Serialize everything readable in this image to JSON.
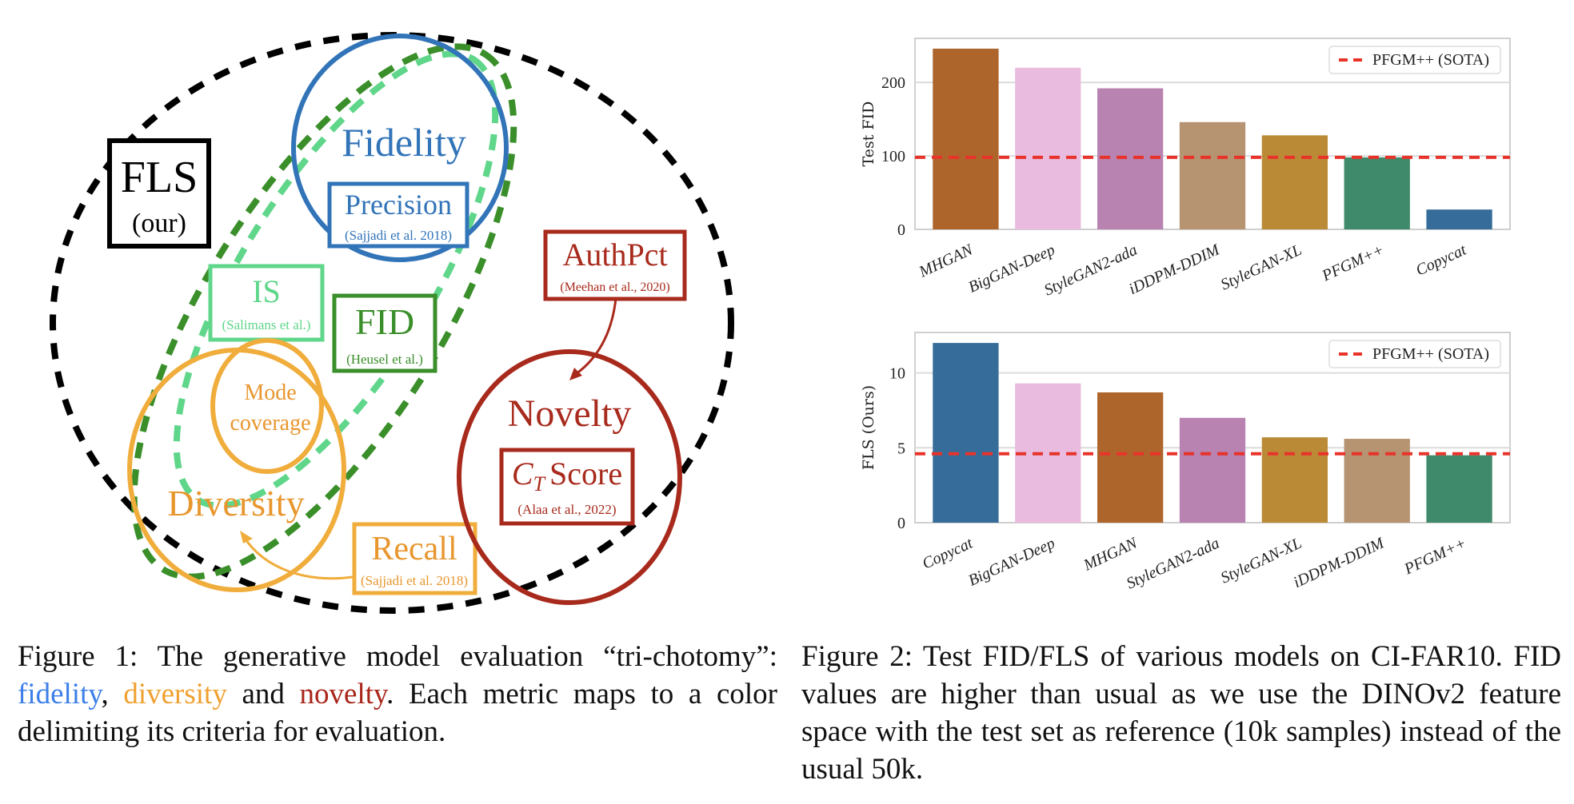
{
  "figure1": {
    "fls": {
      "title": "FLS",
      "sub": "(our)"
    },
    "fidelity": {
      "label": "Fidelity",
      "metric": "Precision",
      "cite": "(Sajjadi et al. 2018)"
    },
    "is": {
      "label": "IS",
      "cite": "(Salimans et al.)"
    },
    "fid": {
      "label": "FID",
      "cite": "(Heusel et al.)"
    },
    "authpct": {
      "label": "AuthPct",
      "cite": "(Meehan et al., 2020)"
    },
    "novelty": {
      "label": "Novelty",
      "metric_c": "C",
      "metric_sub": "T",
      "metric_rest": "Score",
      "cite": "(Alaa et al., 2022)"
    },
    "mode": {
      "line1": "Mode",
      "line2": "coverage"
    },
    "diversity": {
      "label": "Diversity"
    },
    "recall": {
      "label": "Recall",
      "cite": "(Sajjadi et al. 2018)"
    },
    "colors": {
      "fidelity": "#3274b8",
      "fid": "#3a8f2a",
      "is": "#5fd68a",
      "diversity": "#f0ad3c",
      "novelty": "#a82a1c",
      "fls": "#000000"
    }
  },
  "caption1": {
    "prefix": "Figure 1:  The generative model evaluation “tri-chotomy”: ",
    "w1": "fidelity",
    "sep1": ", ",
    "w2": "diversity",
    "sep2": " and ",
    "w3": "novelty",
    "suffix": ". Each metric maps to a color delimiting its criteria for evaluation."
  },
  "caption2": {
    "text": "Figure 2:  Test FID/FLS of various models on CI-FAR10. FID values are higher than usual as we use the DINOv2 feature space with the test set as reference (10k samples) instead of the usual 50k."
  },
  "chart_data": [
    {
      "type": "bar",
      "ylabel": "Test FID",
      "xlabel": "",
      "categories": [
        "MHGAN",
        "BigGAN-Deep",
        "StyleGAN2-ada",
        "iDDPM-DDIM",
        "StyleGAN-XL",
        "PFGM++",
        "Copycat"
      ],
      "values": [
        246,
        220,
        192,
        146,
        128,
        98,
        27
      ],
      "colors": [
        "#ad652c",
        "#e9bbdf",
        "#b883b0",
        "#b69371",
        "#bb8a37",
        "#3f8a6a",
        "#356c99"
      ],
      "yticks": [
        0,
        100,
        200
      ],
      "ylim": [
        0,
        260
      ],
      "grid": true,
      "reference_line": {
        "label": "PFGM++ (SOTA)",
        "value": 98,
        "color": "#e8332a",
        "style": "dashed"
      },
      "legend": "top-right"
    },
    {
      "type": "bar",
      "ylabel": "FLS (Ours)",
      "xlabel": "",
      "categories": [
        "Copycat",
        "BigGAN-Deep",
        "MHGAN",
        "StyleGAN2-ada",
        "StyleGAN-XL",
        "iDDPM-DDIM",
        "PFGM++"
      ],
      "values": [
        12.0,
        9.3,
        8.7,
        7.0,
        5.7,
        5.6,
        4.5
      ],
      "colors": [
        "#356c99",
        "#e9bbdf",
        "#ad652c",
        "#b883b0",
        "#bb8a37",
        "#b69371",
        "#3f8a6a"
      ],
      "yticks": [
        0,
        5,
        10
      ],
      "ylim": [
        0,
        12.7
      ],
      "grid": true,
      "reference_line": {
        "label": "PFGM++ (SOTA)",
        "value": 4.6,
        "color": "#e8332a",
        "style": "dashed"
      },
      "legend": "top-right"
    }
  ]
}
